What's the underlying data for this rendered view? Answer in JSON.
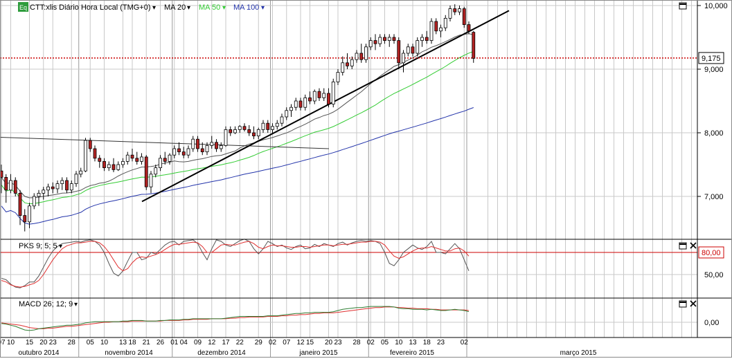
{
  "colors": {
    "candle_up": "#ffffff",
    "candle_down": "#b22222",
    "grid": "#c8c8c8",
    "ma20": "#555555",
    "ma50": "#33cc33",
    "ma100": "#2233aa",
    "pks_k": "#555555",
    "pks_d": "#e03030",
    "macd": "#555555",
    "macd_signal": "#e03030",
    "hline_red": "#cc0000",
    "trendline": "#000000"
  },
  "header": {
    "eq_badge": "Eq",
    "instrument": "CTT:xlis Diário Hora Local (TMG+0)",
    "ma20": "MA 20",
    "ma50": "MA 50",
    "ma100": "MA 100",
    "dropdown_glyph": "▾"
  },
  "panels": {
    "price": {
      "axis_labels": [
        "10,000",
        "9,000",
        "8,000",
        "7,000"
      ],
      "current_value": "9,175"
    },
    "pks": {
      "label": "PKS 9; 5; 5",
      "axis_labels": [
        "80,00",
        "50,00"
      ]
    },
    "macd": {
      "label": "MACD 26; 12; 9",
      "axis_labels": [
        "0,00"
      ]
    }
  },
  "x_axis": {
    "day_labels": [
      "07",
      "10",
      "15",
      "20",
      "23",
      "28",
      "05",
      "10",
      "13",
      "18",
      "21",
      "26",
      "01",
      "04",
      "09",
      "12",
      "17",
      "22",
      "29",
      "02",
      "07",
      "12",
      "15",
      "20",
      "23",
      "28",
      "02",
      "05",
      "10",
      "13",
      "18",
      "23",
      "02"
    ],
    "month_labels": [
      "outubro 2014",
      "novembro 2014",
      "dezembro 2014",
      "janeiro 2015",
      "fevereiro 2015",
      "março 2015"
    ]
  },
  "chart_data": [
    {
      "type": "candlestick",
      "title": "CTT:xlis Diário Hora Local (TMG+0)",
      "ylim": [
        6.4,
        10.1
      ],
      "candles": [
        [
          7.4,
          7.5,
          7.05,
          7.3
        ],
        [
          7.3,
          7.35,
          6.9,
          7.1
        ],
        [
          7.1,
          7.35,
          7.05,
          7.25
        ],
        [
          7.25,
          7.3,
          7.0,
          7.05
        ],
        [
          7.05,
          7.1,
          6.55,
          6.7
        ],
        [
          6.7,
          6.8,
          6.45,
          6.6
        ],
        [
          6.6,
          6.9,
          6.5,
          6.85
        ],
        [
          6.85,
          7.05,
          6.8,
          7.0
        ],
        [
          7.0,
          7.1,
          6.85,
          7.05
        ],
        [
          7.05,
          7.15,
          6.95,
          7.1
        ],
        [
          7.1,
          7.2,
          7.0,
          7.15
        ],
        [
          7.15,
          7.22,
          7.05,
          7.12
        ],
        [
          7.12,
          7.25,
          7.05,
          7.2
        ],
        [
          7.2,
          7.3,
          7.1,
          7.25
        ],
        [
          7.25,
          7.3,
          7.05,
          7.1
        ],
        [
          7.1,
          7.25,
          7.05,
          7.2
        ],
        [
          7.2,
          7.4,
          7.15,
          7.35
        ],
        [
          7.35,
          7.45,
          7.3,
          7.4
        ],
        [
          7.4,
          7.92,
          7.38,
          7.88
        ],
        [
          7.88,
          7.92,
          7.7,
          7.75
        ],
        [
          7.75,
          7.8,
          7.55,
          7.6
        ],
        [
          7.6,
          7.65,
          7.45,
          7.55
        ],
        [
          7.55,
          7.6,
          7.4,
          7.45
        ],
        [
          7.45,
          7.55,
          7.4,
          7.5
        ],
        [
          7.5,
          7.6,
          7.38,
          7.42
        ],
        [
          7.42,
          7.55,
          7.4,
          7.5
        ],
        [
          7.5,
          7.6,
          7.45,
          7.55
        ],
        [
          7.55,
          7.7,
          7.5,
          7.65
        ],
        [
          7.65,
          7.75,
          7.55,
          7.6
        ],
        [
          7.6,
          7.7,
          7.5,
          7.55
        ],
        [
          7.55,
          7.68,
          7.5,
          7.62
        ],
        [
          7.62,
          7.65,
          7.1,
          7.15
        ],
        [
          7.15,
          7.4,
          7.05,
          7.35
        ],
        [
          7.35,
          7.5,
          7.3,
          7.45
        ],
        [
          7.45,
          7.65,
          7.4,
          7.6
        ],
        [
          7.6,
          7.7,
          7.5,
          7.55
        ],
        [
          7.55,
          7.68,
          7.5,
          7.65
        ],
        [
          7.65,
          7.8,
          7.6,
          7.75
        ],
        [
          7.75,
          7.85,
          7.65,
          7.7
        ],
        [
          7.7,
          7.78,
          7.6,
          7.65
        ],
        [
          7.65,
          7.8,
          7.6,
          7.75
        ],
        [
          7.75,
          7.95,
          7.7,
          7.9
        ],
        [
          7.9,
          7.95,
          7.7,
          7.75
        ],
        [
          7.75,
          7.85,
          7.65,
          7.7
        ],
        [
          7.7,
          7.85,
          7.65,
          7.8
        ],
        [
          7.8,
          7.95,
          7.75,
          7.85
        ],
        [
          7.85,
          7.9,
          7.7,
          7.75
        ],
        [
          7.75,
          7.85,
          7.7,
          7.8
        ],
        [
          7.8,
          8.1,
          7.78,
          8.05
        ],
        [
          8.05,
          8.1,
          7.95,
          8.0
        ],
        [
          8.0,
          8.1,
          7.98,
          8.05
        ],
        [
          8.05,
          8.12,
          8.0,
          8.1
        ],
        [
          8.1,
          8.15,
          8.02,
          8.05
        ],
        [
          8.05,
          8.12,
          7.95,
          8.0
        ],
        [
          8.0,
          8.1,
          7.9,
          7.95
        ],
        [
          7.95,
          8.08,
          7.9,
          8.05
        ],
        [
          8.05,
          8.2,
          8.0,
          8.15
        ],
        [
          8.15,
          8.2,
          8.0,
          8.05
        ],
        [
          8.05,
          8.15,
          8.0,
          8.1
        ],
        [
          8.1,
          8.2,
          8.05,
          8.15
        ],
        [
          8.15,
          8.3,
          8.1,
          8.25
        ],
        [
          8.25,
          8.4,
          8.2,
          8.35
        ],
        [
          8.35,
          8.45,
          8.25,
          8.4
        ],
        [
          8.4,
          8.55,
          8.35,
          8.5
        ],
        [
          8.5,
          8.55,
          8.35,
          8.4
        ],
        [
          8.4,
          8.6,
          8.35,
          8.55
        ],
        [
          8.55,
          8.65,
          8.45,
          8.5
        ],
        [
          8.5,
          8.68,
          8.45,
          8.65
        ],
        [
          8.65,
          8.7,
          8.5,
          8.55
        ],
        [
          8.55,
          8.7,
          8.5,
          8.62
        ],
        [
          8.62,
          8.7,
          8.4,
          8.45
        ],
        [
          8.45,
          8.85,
          8.4,
          8.8
        ],
        [
          8.8,
          9.0,
          8.75,
          8.95
        ],
        [
          8.95,
          9.2,
          8.9,
          9.1
        ],
        [
          9.1,
          9.25,
          9.0,
          9.05
        ],
        [
          9.05,
          9.2,
          9.0,
          9.15
        ],
        [
          9.15,
          9.3,
          9.1,
          9.25
        ],
        [
          9.25,
          9.4,
          9.1,
          9.15
        ],
        [
          9.15,
          9.4,
          9.1,
          9.35
        ],
        [
          9.35,
          9.5,
          9.3,
          9.45
        ],
        [
          9.45,
          9.55,
          9.3,
          9.4
        ],
        [
          9.4,
          9.55,
          9.35,
          9.5
        ],
        [
          9.5,
          9.55,
          9.4,
          9.45
        ],
        [
          9.45,
          9.55,
          9.35,
          9.5
        ],
        [
          9.5,
          9.55,
          9.4,
          9.45
        ],
        [
          9.45,
          9.5,
          9.0,
          9.1
        ],
        [
          9.1,
          9.3,
          8.95,
          9.25
        ],
        [
          9.25,
          9.4,
          9.2,
          9.35
        ],
        [
          9.35,
          9.4,
          9.2,
          9.25
        ],
        [
          9.25,
          9.5,
          9.2,
          9.45
        ],
        [
          9.45,
          9.55,
          9.35,
          9.5
        ],
        [
          9.5,
          9.6,
          9.4,
          9.45
        ],
        [
          9.45,
          9.8,
          9.4,
          9.75
        ],
        [
          9.75,
          9.8,
          9.55,
          9.6
        ],
        [
          9.6,
          9.7,
          9.5,
          9.65
        ],
        [
          9.65,
          9.85,
          9.6,
          9.8
        ],
        [
          9.8,
          10.0,
          9.75,
          9.95
        ],
        [
          9.95,
          10.02,
          9.85,
          9.9
        ],
        [
          9.9,
          10.0,
          9.85,
          9.95
        ],
        [
          9.95,
          9.98,
          9.65,
          9.7
        ],
        [
          9.7,
          9.75,
          9.55,
          9.6
        ],
        [
          9.58,
          9.6,
          9.1,
          9.17
        ]
      ]
    },
    {
      "type": "line",
      "title": "PKS 9; 5; 5",
      "ylim": [
        25,
        105
      ],
      "series": [
        {
          "name": "",
          "values": [
            45,
            43,
            37,
            33,
            32,
            35,
            40,
            40,
            48,
            60,
            72,
            82,
            88,
            92,
            93,
            94,
            95,
            94,
            96,
            97,
            95,
            90,
            80,
            65,
            52,
            48,
            55,
            68,
            80,
            80,
            70,
            72,
            80,
            78,
            84,
            90,
            94,
            95,
            90,
            95,
            96,
            97,
            92,
            80,
            70,
            85,
            97,
            95,
            90,
            88,
            92,
            96,
            98,
            95,
            85,
            78,
            85,
            95,
            92,
            88,
            90,
            86,
            84,
            88,
            90,
            85,
            86,
            91,
            88,
            92,
            90,
            88,
            92,
            94,
            90,
            93,
            95,
            96,
            95,
            96,
            95,
            92,
            80,
            65,
            62,
            70,
            80,
            85,
            90,
            86,
            84,
            88,
            95,
            80,
            80,
            78,
            85,
            92,
            85,
            70,
            55
          ]
        },
        {
          "name": "",
          "values": [
            42,
            40,
            36,
            34,
            33,
            34,
            36,
            38,
            42,
            50,
            60,
            70,
            78,
            85,
            89,
            91,
            93,
            93,
            94,
            95,
            95,
            93,
            88,
            80,
            70,
            60,
            55,
            58,
            66,
            72,
            74,
            73,
            75,
            77,
            80,
            84,
            88,
            91,
            91,
            92,
            93,
            94,
            93,
            88,
            80,
            80,
            85,
            90,
            91,
            90,
            90,
            92,
            94,
            95,
            92,
            87,
            85,
            88,
            90,
            89,
            89,
            88,
            87,
            87,
            88,
            88,
            87,
            88,
            89,
            90,
            90,
            89,
            90,
            91,
            91,
            92,
            93,
            94,
            94,
            95,
            95,
            94,
            90,
            82,
            75,
            72,
            74,
            78,
            82,
            85,
            86,
            86,
            88,
            86,
            84,
            82,
            82,
            85,
            86,
            82,
            75
          ]
        }
      ]
    },
    {
      "type": "line",
      "title": "MACD 26; 12; 9",
      "ylim": [
        -0.25,
        0.35
      ],
      "series": [
        {
          "name": "",
          "values": [
            -0.02,
            -0.03,
            -0.05,
            -0.07,
            -0.1,
            -0.13,
            -0.14,
            -0.13,
            -0.11,
            -0.1,
            -0.09,
            -0.08,
            -0.07,
            -0.06,
            -0.05,
            -0.05,
            -0.04,
            -0.03,
            -0.01,
            0.0,
            0.01,
            0.01,
            0.01,
            0.01,
            0.01,
            0.01,
            0.02,
            0.02,
            0.03,
            0.03,
            0.03,
            0.02,
            0.02,
            0.02,
            0.03,
            0.03,
            0.04,
            0.04,
            0.04,
            0.05,
            0.05,
            0.06,
            0.06,
            0.06,
            0.06,
            0.06,
            0.06,
            0.06,
            0.07,
            0.08,
            0.09,
            0.1,
            0.1,
            0.1,
            0.1,
            0.1,
            0.1,
            0.11,
            0.11,
            0.11,
            0.12,
            0.13,
            0.14,
            0.15,
            0.15,
            0.16,
            0.16,
            0.17,
            0.17,
            0.17,
            0.17,
            0.18,
            0.2,
            0.22,
            0.23,
            0.24,
            0.25,
            0.25,
            0.26,
            0.27,
            0.27,
            0.27,
            0.27,
            0.27,
            0.26,
            0.24,
            0.23,
            0.23,
            0.22,
            0.22,
            0.22,
            0.21,
            0.22,
            0.21,
            0.2,
            0.2,
            0.21,
            0.22,
            0.21,
            0.2,
            0.18
          ]
        },
        {
          "name": "",
          "values": [
            -0.01,
            -0.02,
            -0.03,
            -0.04,
            -0.05,
            -0.07,
            -0.09,
            -0.1,
            -0.11,
            -0.11,
            -0.1,
            -0.1,
            -0.09,
            -0.08,
            -0.07,
            -0.07,
            -0.06,
            -0.05,
            -0.04,
            -0.03,
            -0.02,
            -0.01,
            0.0,
            0.0,
            0.01,
            0.01,
            0.01,
            0.01,
            0.02,
            0.02,
            0.02,
            0.02,
            0.02,
            0.02,
            0.02,
            0.03,
            0.03,
            0.03,
            0.03,
            0.04,
            0.04,
            0.05,
            0.05,
            0.05,
            0.05,
            0.06,
            0.06,
            0.06,
            0.06,
            0.07,
            0.07,
            0.08,
            0.08,
            0.09,
            0.09,
            0.09,
            0.09,
            0.1,
            0.1,
            0.1,
            0.11,
            0.11,
            0.12,
            0.12,
            0.13,
            0.13,
            0.14,
            0.15,
            0.15,
            0.16,
            0.16,
            0.16,
            0.17,
            0.18,
            0.19,
            0.2,
            0.21,
            0.22,
            0.23,
            0.24,
            0.25,
            0.25,
            0.26,
            0.26,
            0.26,
            0.25,
            0.25,
            0.24,
            0.24,
            0.23,
            0.23,
            0.23,
            0.22,
            0.22,
            0.21,
            0.21,
            0.21,
            0.21,
            0.21,
            0.21,
            0.2
          ]
        }
      ]
    }
  ]
}
